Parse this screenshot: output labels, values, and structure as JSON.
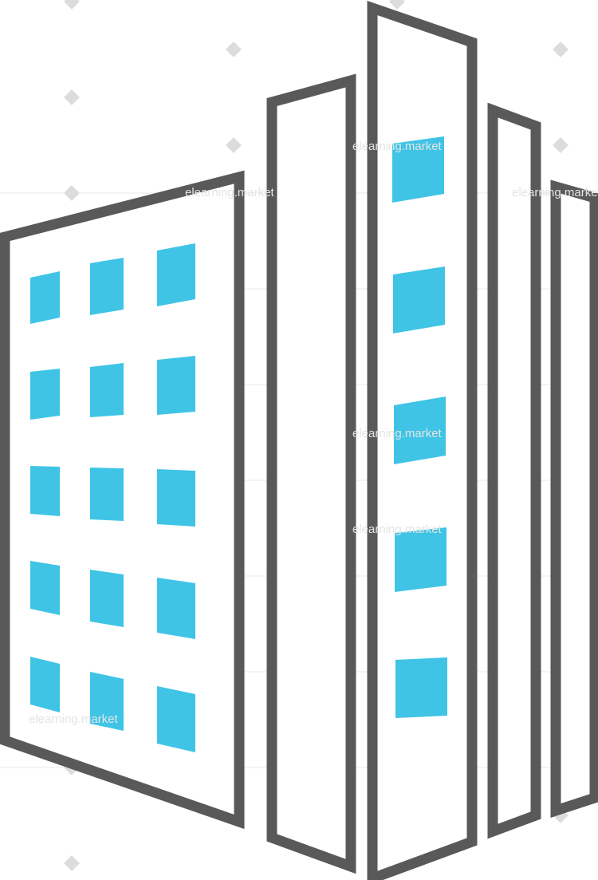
{
  "graphic": {
    "subject": "buildings-icon",
    "colors": {
      "outline": "#595959",
      "window": "#3fc4e6",
      "background": "#ffffff",
      "watermark": "#dcdcdc"
    }
  },
  "watermark": {
    "text": "elearning.market"
  }
}
